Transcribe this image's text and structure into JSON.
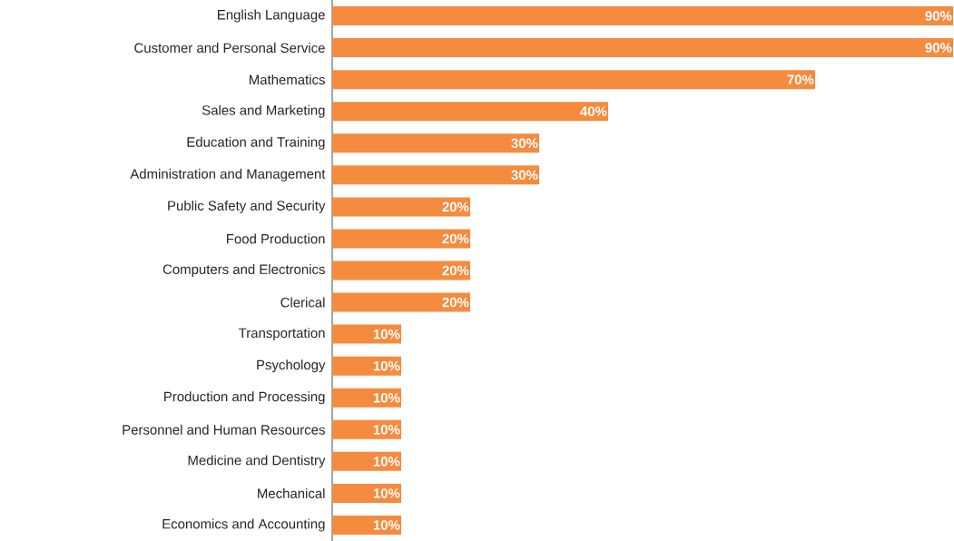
{
  "chart_data": {
    "type": "bar",
    "orientation": "horizontal",
    "categories": [
      "English Language",
      "Customer and Personal Service",
      "Mathematics",
      "Sales and Marketing",
      "Education and Training",
      "Administration and Management",
      "Public Safety and Security",
      "Food Production",
      "Computers and Electronics",
      "Clerical",
      "Transportation",
      "Psychology",
      "Production and Processing",
      "Personnel and Human Resources",
      "Medicine and Dentistry",
      "Mechanical",
      "Economics and Accounting"
    ],
    "values": [
      90,
      90,
      70,
      40,
      30,
      30,
      20,
      20,
      20,
      20,
      10,
      10,
      10,
      10,
      10,
      10,
      10
    ],
    "value_labels": [
      "90%",
      "90%",
      "70%",
      "40%",
      "30%",
      "30%",
      "20%",
      "20%",
      "20%",
      "20%",
      "10%",
      "10%",
      "10%",
      "10%",
      "10%",
      "10%",
      "10%"
    ],
    "color": "#f58b3f",
    "xlim": [
      0,
      90
    ],
    "tick_labels": "y"
  }
}
